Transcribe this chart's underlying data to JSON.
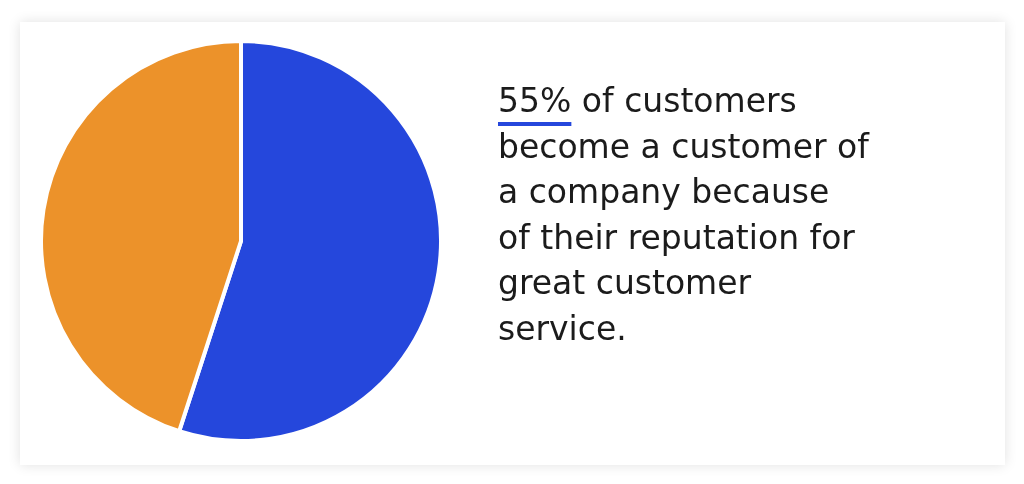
{
  "chart_data": {
    "type": "pie",
    "categories": [
      null,
      null
    ],
    "values": [
      55,
      45
    ],
    "colors": [
      "#2547dc",
      "#ec922a"
    ],
    "annotations": [
      "55% of customers\nbecome a customer of\na company because\nof their reputation for\ngreat customer\nservice."
    ]
  }
}
